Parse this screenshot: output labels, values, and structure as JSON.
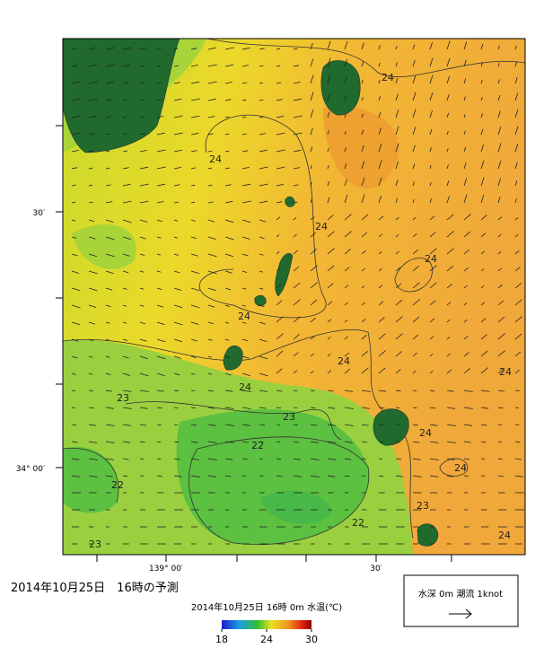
{
  "map": {
    "lat_labels": [
      "30′",
      "34° 00′"
    ],
    "lon_labels": [
      "139° 00′",
      "30′"
    ],
    "contour_labels": [
      "24",
      "24",
      "24",
      "24",
      "24",
      "24",
      "24",
      "24",
      "23",
      "23",
      "24",
      "22",
      "24",
      "22",
      "23",
      "22",
      "23",
      "24"
    ]
  },
  "caption": "2014年10月25日　16時の予測",
  "colorbar": {
    "title": "2014年10月25日 16時 0m 水温(℃)",
    "ticks": [
      18,
      24,
      30
    ]
  },
  "legend": {
    "label": "水深 0m 潮流 1knot"
  }
}
